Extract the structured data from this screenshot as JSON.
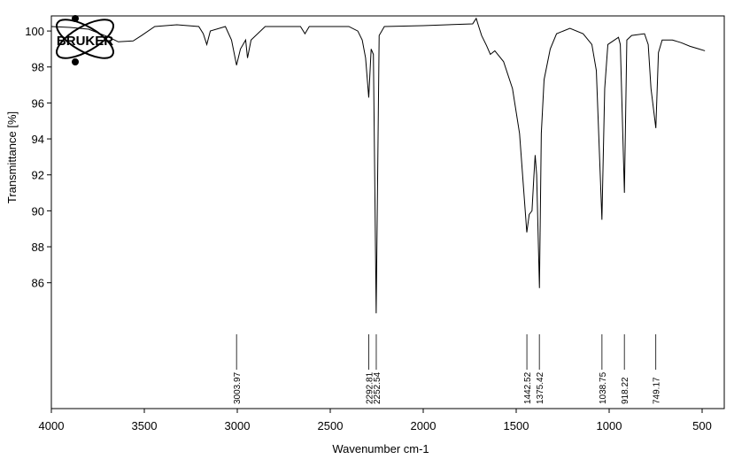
{
  "logo": {
    "text": "BRUKER"
  },
  "chart_data": {
    "type": "line",
    "xlabel": "Wavenumber cm-1",
    "ylabel": "Transmittance [%]",
    "xlim": [
      4000,
      381
    ],
    "ylim": [
      79,
      100.84
    ],
    "xticks": [
      4000,
      3500,
      3000,
      2500,
      2000,
      1500,
      1000,
      500
    ],
    "yticks": [
      86,
      88,
      90,
      92,
      94,
      96,
      98,
      100
    ],
    "peaks": [
      3003.97,
      2292.81,
      2252.54,
      1442.52,
      1375.42,
      1038.75,
      918.22,
      749.17
    ],
    "series": [
      {
        "name": "spectrum",
        "color": "#000000",
        "x": [
          4000,
          3900,
          3800,
          3700,
          3640,
          3560,
          3515,
          3444,
          3325,
          3207,
          3183,
          3164,
          3145,
          3064,
          3031,
          3004,
          2983,
          2955,
          2945,
          2926,
          2850,
          2660,
          2636,
          2613,
          2400,
          2352,
          2328,
          2310,
          2293,
          2280,
          2268,
          2253,
          2237,
          2209,
          2000,
          1734,
          1715,
          1700,
          1686,
          1660,
          1639,
          1615,
          1568,
          1520,
          1482,
          1443,
          1430,
          1415,
          1405,
          1398,
          1390,
          1375,
          1365,
          1350,
          1317,
          1283,
          1211,
          1140,
          1093,
          1069,
          1039,
          1024,
          1007,
          950,
          940,
          918,
          905,
          879,
          810,
          790,
          775,
          749,
          735,
          715,
          660,
          612,
          565,
          517,
          485
        ],
        "values": [
          100.25,
          100.2,
          100.1,
          99.7,
          99.4,
          99.45,
          99.75,
          100.25,
          100.35,
          100.25,
          99.85,
          99.25,
          100.0,
          100.25,
          99.5,
          98.1,
          99.0,
          99.5,
          98.5,
          99.5,
          100.25,
          100.25,
          99.85,
          100.25,
          100.25,
          100.0,
          99.5,
          98.5,
          96.3,
          99.0,
          98.7,
          84.3,
          99.75,
          100.25,
          100.3,
          100.4,
          100.7,
          100.2,
          99.75,
          99.2,
          98.7,
          98.9,
          98.3,
          96.8,
          94.3,
          88.8,
          89.8,
          90.0,
          91.9,
          93.1,
          92.0,
          85.7,
          94.3,
          97.3,
          99.0,
          99.85,
          100.15,
          99.85,
          99.25,
          97.8,
          89.5,
          96.8,
          99.25,
          99.65,
          99.25,
          91.0,
          99.5,
          99.75,
          99.85,
          99.25,
          96.8,
          94.6,
          98.8,
          99.5,
          99.5,
          99.35,
          99.15,
          99.0,
          98.9
        ]
      }
    ]
  }
}
